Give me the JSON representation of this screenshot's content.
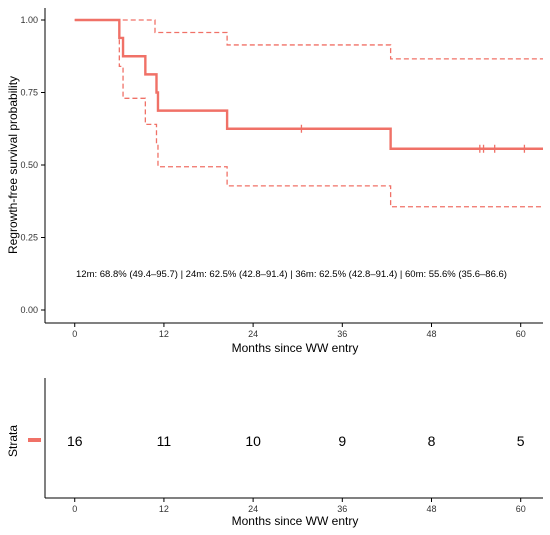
{
  "chart_data": [
    {
      "type": "line",
      "chart_kind": "kaplan-meier",
      "title": "",
      "xlabel": "Months since WW entry",
      "ylabel": "Regrowth-free survival probability",
      "xlim": [
        -4,
        63
      ],
      "ylim": [
        0,
        1
      ],
      "x_ticks": [
        0,
        12,
        24,
        36,
        48,
        60
      ],
      "x_tick_labels": [
        "0",
        "12",
        "24",
        "36",
        "48",
        "60"
      ],
      "y_ticks": [
        0,
        0.25,
        0.5,
        0.75,
        1.0
      ],
      "y_tick_labels": [
        "0.00",
        "0.25",
        "0.50",
        "0.75",
        "1.00"
      ],
      "grid": false,
      "color": "#f07167",
      "series": [
        {
          "role": "estimate",
          "steps": [
            [
              0,
              1.0
            ],
            [
              6,
              0.938
            ],
            [
              6.5,
              0.875
            ],
            [
              9.5,
              0.8125
            ],
            [
              11,
              0.75
            ],
            [
              11.2,
              0.6875
            ],
            [
              20.5,
              0.625
            ],
            [
              42.5,
              0.556
            ],
            [
              63,
              0.556
            ]
          ]
        },
        {
          "role": "upper-ci",
          "steps": [
            [
              0,
              1.0
            ],
            [
              10.8,
              0.957
            ],
            [
              20.5,
              0.914
            ],
            [
              42.5,
              0.866
            ],
            [
              63,
              0.866
            ]
          ]
        },
        {
          "role": "lower-ci",
          "steps": [
            [
              0,
              1.0
            ],
            [
              6,
              0.84
            ],
            [
              6.5,
              0.73
            ],
            [
              9.5,
              0.64
            ],
            [
              11,
              0.57
            ],
            [
              11.2,
              0.494
            ],
            [
              20.5,
              0.428
            ],
            [
              42.5,
              0.356
            ],
            [
              63,
              0.356
            ]
          ]
        }
      ],
      "censor_marks": [
        {
          "x": 30.5,
          "y": 0.625
        },
        {
          "x": 54.5,
          "y": 0.556
        },
        {
          "x": 55,
          "y": 0.556
        },
        {
          "x": 56.5,
          "y": 0.556
        },
        {
          "x": 60.5,
          "y": 0.556
        }
      ],
      "annotation": "12m: 68.8% (49.4–95.7) | 24m: 62.5% (42.8–91.4) | 36m: 62.5% (42.8–91.4) | 60m: 55.6% (35.6–86.6)"
    },
    {
      "type": "table",
      "title": "",
      "xlabel": "Months since WW entry",
      "ylabel": "Strata",
      "xlim": [
        -4,
        63
      ],
      "x_ticks": [
        0,
        12,
        24,
        36,
        48,
        60
      ],
      "x_tick_labels": [
        "0",
        "12",
        "24",
        "36",
        "48",
        "60"
      ],
      "number_at_risk": [
        {
          "x": 0,
          "label": "16"
        },
        {
          "x": 12,
          "label": "11"
        },
        {
          "x": 24,
          "label": "10"
        },
        {
          "x": 36,
          "label": "9"
        },
        {
          "x": 48,
          "label": "8"
        },
        {
          "x": 60,
          "label": "5"
        }
      ],
      "legend_color": "#f07167"
    }
  ]
}
